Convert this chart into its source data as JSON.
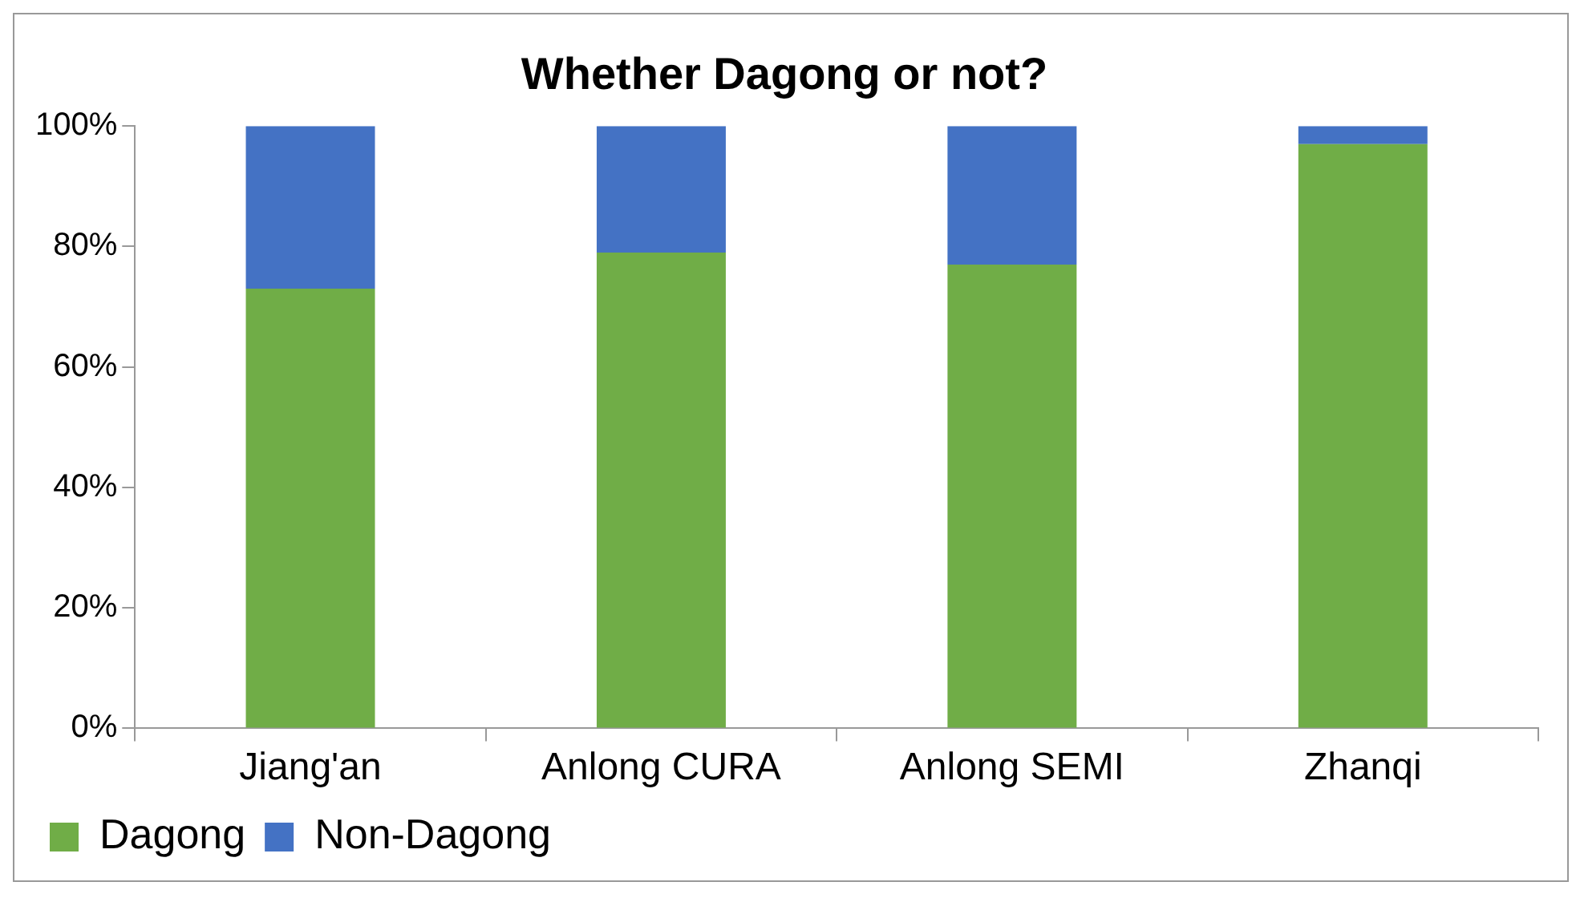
{
  "chart_data": {
    "type": "bar",
    "title": "Whether Dagong or not?",
    "categories": [
      "Jiang'an",
      "Anlong CURA",
      "Anlong SEMI",
      "Zhanqi"
    ],
    "stacked": true,
    "series": [
      {
        "name": "Dagong",
        "color": "#70ad47",
        "values": [
          73,
          79,
          77,
          97
        ]
      },
      {
        "name": "Non-Dagong",
        "color": "#4472c4",
        "values": [
          27,
          21,
          23,
          3
        ]
      }
    ],
    "ylim": [
      0,
      100
    ],
    "yticks": [
      {
        "value": 0,
        "label": "0%"
      },
      {
        "value": 20,
        "label": "20%"
      },
      {
        "value": 40,
        "label": "40%"
      },
      {
        "value": 60,
        "label": "60%"
      },
      {
        "value": 80,
        "label": "80%"
      },
      {
        "value": 100,
        "label": "100%"
      }
    ],
    "grid": false,
    "legend": "bottom left"
  }
}
